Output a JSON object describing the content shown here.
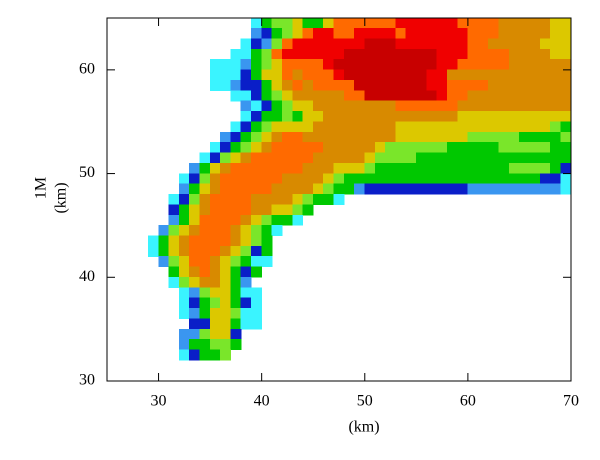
{
  "chart_data": {
    "type": "heatmap",
    "xlabel": "(km)",
    "ylabel": [
      "1M",
      "(km)"
    ],
    "xlim": [
      25,
      70
    ],
    "ylim": [
      30,
      65
    ],
    "xticks": [
      30,
      40,
      50,
      60,
      70
    ],
    "yticks": [
      30,
      40,
      50,
      60
    ],
    "colors": [
      "#3af4ff",
      "#3a96f0",
      "#0a1ec8",
      "#00c800",
      "#7ae62a",
      "#dcc800",
      "#d88a00",
      "#ff6a00",
      "#f00000",
      "#c80000"
    ],
    "x": [
      29,
      30,
      31,
      32,
      33,
      34,
      35,
      36,
      37,
      38,
      39,
      40,
      41,
      42,
      43,
      44,
      45,
      46,
      47,
      48,
      49,
      50,
      51,
      52,
      53,
      54,
      55,
      56,
      57,
      58,
      59,
      60,
      61,
      62,
      63,
      64,
      65,
      66,
      67,
      68,
      69
    ],
    "y": [
      64,
      63,
      62,
      61,
      60,
      59,
      58,
      57,
      56,
      55,
      54,
      53,
      52,
      51,
      50,
      49,
      48,
      47,
      46,
      45,
      44,
      43,
      42,
      41,
      40,
      39,
      38,
      37,
      36,
      35,
      34,
      33,
      32
    ],
    "z": [
      [
        null,
        null,
        null,
        null,
        null,
        null,
        null,
        null,
        null,
        null,
        1,
        4,
        5,
        5,
        6,
        4,
        4,
        6,
        8,
        8,
        8,
        8,
        8,
        8,
        9,
        9,
        9,
        9,
        9,
        9,
        8,
        8,
        8,
        8,
        7,
        7,
        7,
        7,
        7,
        6,
        6
      ],
      [
        null,
        null,
        null,
        null,
        null,
        null,
        null,
        null,
        null,
        null,
        2,
        3,
        4,
        5,
        6,
        8,
        9,
        9,
        8,
        8,
        9,
        9,
        9,
        9,
        8,
        9,
        9,
        9,
        9,
        9,
        9,
        8,
        8,
        8,
        7,
        7,
        7,
        7,
        7,
        6,
        6
      ],
      [
        null,
        null,
        null,
        null,
        null,
        null,
        null,
        null,
        null,
        1,
        3,
        2,
        5,
        8,
        9,
        9,
        9,
        9,
        9,
        9,
        9,
        10,
        10,
        10,
        9,
        9,
        9,
        9,
        9,
        9,
        9,
        8,
        8,
        7,
        7,
        7,
        7,
        7,
        6,
        6,
        6
      ],
      [
        null,
        null,
        null,
        null,
        null,
        null,
        null,
        null,
        1,
        1,
        4,
        5,
        8,
        9,
        9,
        9,
        9,
        9,
        9,
        10,
        10,
        10,
        10,
        10,
        10,
        10,
        10,
        10,
        9,
        9,
        9,
        8,
        8,
        8,
        8,
        7,
        7,
        7,
        7,
        6,
        6
      ],
      [
        null,
        null,
        null,
        null,
        null,
        null,
        1,
        1,
        1,
        2,
        4,
        5,
        6,
        8,
        8,
        8,
        8,
        9,
        10,
        10,
        10,
        10,
        10,
        10,
        10,
        10,
        10,
        10,
        9,
        9,
        8,
        8,
        8,
        8,
        8,
        7,
        7,
        7,
        7,
        7,
        7
      ],
      [
        null,
        null,
        null,
        null,
        null,
        null,
        1,
        1,
        1,
        3,
        4,
        6,
        6,
        8,
        7,
        8,
        8,
        8,
        9,
        10,
        10,
        10,
        10,
        10,
        10,
        10,
        10,
        9,
        9,
        7,
        7,
        7,
        7,
        7,
        7,
        7,
        7,
        7,
        7,
        7,
        7
      ],
      [
        null,
        null,
        null,
        null,
        null,
        null,
        1,
        1,
        2,
        3,
        3,
        4,
        6,
        7,
        8,
        7,
        8,
        8,
        8,
        8,
        10,
        10,
        10,
        10,
        10,
        10,
        10,
        9,
        9,
        8,
        8,
        8,
        8,
        7,
        7,
        7,
        7,
        7,
        7,
        7,
        7
      ],
      [
        null,
        null,
        null,
        null,
        null,
        null,
        null,
        null,
        1,
        1,
        3,
        4,
        5,
        6,
        7,
        7,
        7,
        7,
        7,
        8,
        8,
        10,
        10,
        10,
        10,
        10,
        10,
        10,
        9,
        8,
        8,
        7,
        7,
        7,
        7,
        7,
        7,
        7,
        7,
        7,
        7
      ],
      [
        null,
        null,
        null,
        null,
        null,
        null,
        null,
        null,
        null,
        2,
        1,
        3,
        4,
        5,
        6,
        6,
        7,
        7,
        7,
        7,
        7,
        7,
        7,
        7,
        8,
        8,
        8,
        8,
        8,
        8,
        7,
        7,
        7,
        7,
        7,
        7,
        7,
        7,
        7,
        7,
        7
      ],
      [
        null,
        null,
        null,
        null,
        null,
        null,
        null,
        null,
        null,
        1,
        3,
        4,
        4,
        5,
        4,
        6,
        6,
        7,
        7,
        7,
        7,
        7,
        7,
        7,
        7,
        7,
        7,
        7,
        7,
        7,
        6,
        6,
        6,
        6,
        6,
        6,
        6,
        6,
        6,
        6,
        6
      ],
      [
        null,
        null,
        null,
        null,
        null,
        null,
        null,
        null,
        1,
        3,
        4,
        5,
        6,
        6,
        6,
        6,
        7,
        7,
        7,
        7,
        7,
        7,
        7,
        7,
        6,
        6,
        6,
        6,
        6,
        6,
        6,
        6,
        6,
        6,
        6,
        6,
        6,
        6,
        6,
        5,
        4
      ],
      [
        null,
        null,
        null,
        null,
        null,
        null,
        null,
        2,
        3,
        4,
        5,
        6,
        7,
        8,
        8,
        7,
        7,
        7,
        7,
        7,
        7,
        7,
        7,
        7,
        6,
        6,
        6,
        6,
        6,
        6,
        6,
        5,
        5,
        5,
        5,
        5,
        4,
        4,
        4,
        4,
        5
      ],
      [
        null,
        null,
        null,
        null,
        null,
        null,
        1,
        3,
        4,
        5,
        6,
        7,
        8,
        8,
        8,
        8,
        8,
        7,
        7,
        7,
        7,
        7,
        6,
        5,
        5,
        5,
        5,
        5,
        5,
        4,
        4,
        4,
        4,
        4,
        5,
        5,
        5,
        5,
        5,
        4,
        4
      ],
      [
        null,
        null,
        null,
        null,
        null,
        1,
        3,
        5,
        6,
        7,
        8,
        8,
        8,
        8,
        8,
        8,
        7,
        7,
        7,
        7,
        7,
        6,
        5,
        5,
        5,
        5,
        4,
        4,
        4,
        4,
        4,
        4,
        4,
        4,
        4,
        4,
        4,
        4,
        4,
        4,
        4
      ],
      [
        null,
        null,
        null,
        null,
        2,
        4,
        6,
        7,
        8,
        8,
        8,
        8,
        8,
        8,
        8,
        7,
        7,
        7,
        6,
        6,
        6,
        5,
        4,
        4,
        4,
        4,
        4,
        4,
        4,
        4,
        4,
        4,
        4,
        4,
        4,
        5,
        5,
        5,
        5,
        4,
        3
      ],
      [
        null,
        null,
        null,
        1,
        3,
        5,
        7,
        8,
        8,
        8,
        8,
        8,
        8,
        7,
        7,
        7,
        7,
        6,
        5,
        4,
        4,
        4,
        4,
        4,
        4,
        4,
        4,
        4,
        4,
        4,
        4,
        4,
        4,
        4,
        4,
        4,
        4,
        4,
        3,
        3,
        1
      ],
      [
        null,
        null,
        null,
        2,
        4,
        6,
        7,
        8,
        8,
        8,
        8,
        8,
        7,
        7,
        7,
        7,
        6,
        5,
        4,
        4,
        2,
        3,
        3,
        3,
        3,
        3,
        3,
        3,
        3,
        3,
        3,
        2,
        2,
        2,
        2,
        2,
        2,
        2,
        2,
        2,
        1
      ],
      [
        null,
        null,
        1,
        3,
        5,
        7,
        8,
        8,
        8,
        8,
        7,
        7,
        7,
        7,
        6,
        5,
        4,
        4,
        1,
        null,
        null,
        null,
        null,
        null,
        null,
        null,
        null,
        null,
        null,
        null,
        null,
        null,
        null,
        null,
        null,
        null,
        null,
        null,
        null,
        null,
        null
      ],
      [
        null,
        null,
        3,
        4,
        6,
        7,
        8,
        8,
        8,
        8,
        7,
        7,
        6,
        6,
        5,
        4,
        null,
        null,
        null,
        null,
        null,
        null,
        null,
        null,
        null,
        null,
        null,
        null,
        null,
        null,
        null,
        null,
        null,
        null,
        null,
        null,
        null,
        null,
        null,
        null,
        null
      ],
      [
        null,
        null,
        2,
        4,
        6,
        8,
        8,
        8,
        8,
        7,
        6,
        5,
        4,
        4,
        1,
        null,
        null,
        null,
        null,
        null,
        null,
        null,
        null,
        null,
        null,
        null,
        null,
        null,
        null,
        null,
        null,
        null,
        null,
        null,
        null,
        null,
        null,
        null,
        null,
        null,
        null
      ],
      [
        null,
        2,
        5,
        6,
        7,
        8,
        8,
        8,
        7,
        6,
        5,
        4,
        1,
        null,
        null,
        null,
        null,
        null,
        null,
        null,
        null,
        null,
        null,
        null,
        null,
        null,
        null,
        null,
        null,
        null,
        null,
        null,
        null,
        null,
        null,
        null,
        null,
        null,
        null,
        null,
        null
      ],
      [
        1,
        4,
        6,
        7,
        8,
        8,
        8,
        8,
        7,
        6,
        5,
        4,
        null,
        null,
        null,
        null,
        null,
        null,
        null,
        null,
        null,
        null,
        null,
        null,
        null,
        null,
        null,
        null,
        null,
        null,
        null,
        null,
        null,
        null,
        null,
        null,
        null,
        null,
        null,
        null,
        null
      ],
      [
        1,
        4,
        6,
        7,
        8,
        8,
        8,
        7,
        6,
        5,
        3,
        4,
        null,
        null,
        null,
        null,
        null,
        null,
        null,
        null,
        null,
        null,
        null,
        null,
        null,
        null,
        null,
        null,
        null,
        null,
        null,
        null,
        null,
        null,
        null,
        null,
        null,
        null,
        null,
        null,
        null
      ],
      [
        null,
        2,
        5,
        6,
        8,
        8,
        7,
        6,
        5,
        4,
        1,
        1,
        null,
        null,
        null,
        null,
        null,
        null,
        null,
        null,
        null,
        null,
        null,
        null,
        null,
        null,
        null,
        null,
        null,
        null,
        null,
        null,
        null,
        null,
        null,
        null,
        null,
        null,
        null,
        null,
        null
      ],
      [
        null,
        null,
        4,
        6,
        7,
        8,
        7,
        6,
        4,
        3,
        4,
        null,
        null,
        null,
        null,
        null,
        null,
        null,
        null,
        null,
        null,
        null,
        null,
        null,
        null,
        null,
        null,
        null,
        null,
        null,
        null,
        null,
        null,
        null,
        null,
        null,
        null,
        null,
        null,
        null,
        null
      ],
      [
        null,
        null,
        1,
        5,
        6,
        7,
        7,
        6,
        4,
        2,
        null,
        null,
        null,
        null,
        null,
        null,
        null,
        null,
        null,
        null,
        null,
        null,
        null,
        null,
        null,
        null,
        null,
        null,
        null,
        null,
        null,
        null,
        null,
        null,
        null,
        null,
        null,
        null,
        null,
        null,
        null
      ],
      [
        null,
        null,
        null,
        1,
        2,
        5,
        6,
        6,
        4,
        1,
        1,
        null,
        null,
        null,
        null,
        null,
        null,
        null,
        null,
        null,
        null,
        null,
        null,
        null,
        null,
        null,
        null,
        null,
        null,
        null,
        null,
        null,
        null,
        null,
        null,
        null,
        null,
        null,
        null,
        null,
        null
      ],
      [
        null,
        null,
        null,
        1,
        3,
        4,
        5,
        6,
        4,
        3,
        1,
        null,
        null,
        null,
        null,
        null,
        null,
        null,
        null,
        null,
        null,
        null,
        null,
        null,
        null,
        null,
        null,
        null,
        null,
        null,
        null,
        null,
        null,
        null,
        null,
        null,
        null,
        null,
        null,
        null,
        null
      ],
      [
        null,
        null,
        null,
        1,
        2,
        4,
        6,
        6,
        5,
        1,
        1,
        null,
        null,
        null,
        null,
        null,
        null,
        null,
        null,
        null,
        null,
        null,
        null,
        null,
        null,
        null,
        null,
        null,
        null,
        null,
        null,
        null,
        null,
        null,
        null,
        null,
        null,
        null,
        null,
        null,
        null
      ],
      [
        null,
        null,
        null,
        null,
        3,
        3,
        6,
        6,
        4,
        1,
        1,
        null,
        null,
        null,
        null,
        null,
        null,
        null,
        null,
        null,
        null,
        null,
        null,
        null,
        null,
        null,
        null,
        null,
        null,
        null,
        null,
        null,
        null,
        null,
        null,
        null,
        null,
        null,
        null,
        null,
        null
      ],
      [
        null,
        null,
        null,
        2,
        2,
        5,
        6,
        6,
        3,
        null,
        null,
        null,
        null,
        null,
        null,
        null,
        null,
        null,
        null,
        null,
        null,
        null,
        null,
        null,
        null,
        null,
        null,
        null,
        null,
        null,
        null,
        null,
        null,
        null,
        null,
        null,
        null,
        null,
        null,
        null,
        null
      ],
      [
        null,
        null,
        null,
        2,
        4,
        4,
        5,
        5,
        4,
        null,
        null,
        null,
        null,
        null,
        null,
        null,
        null,
        null,
        null,
        null,
        null,
        null,
        null,
        null,
        null,
        null,
        null,
        null,
        null,
        null,
        null,
        null,
        null,
        null,
        null,
        null,
        null,
        null,
        null,
        null,
        null
      ],
      [
        null,
        null,
        null,
        1,
        3,
        4,
        4,
        5,
        null,
        null,
        null,
        null,
        null,
        null,
        null,
        null,
        null,
        null,
        null,
        null,
        null,
        null,
        null,
        null,
        null,
        null,
        null,
        null,
        null,
        null,
        null,
        null,
        null,
        null,
        null,
        null,
        null,
        null,
        null,
        null,
        null
      ]
    ]
  }
}
